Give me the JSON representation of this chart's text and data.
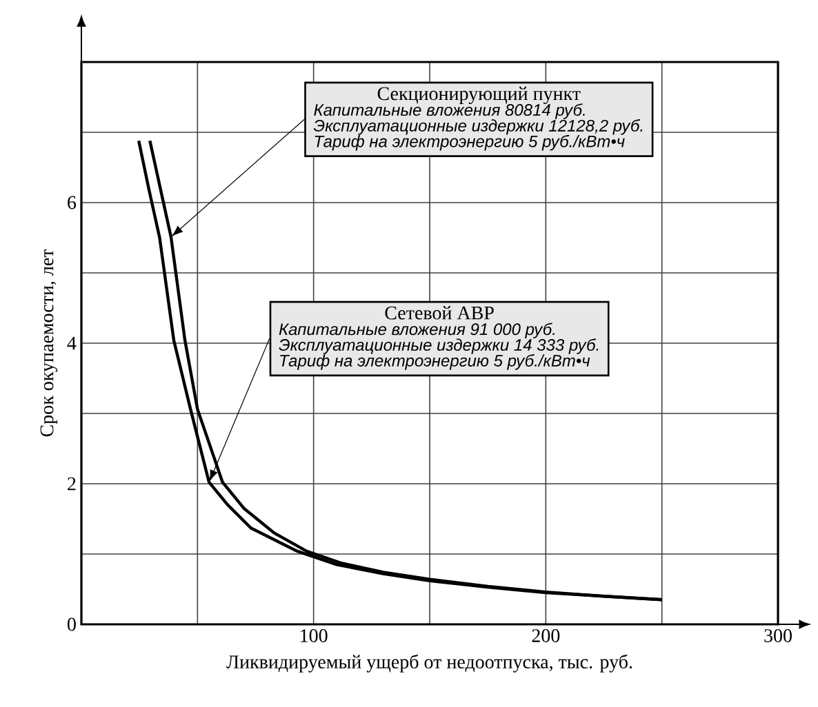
{
  "chart_data": {
    "type": "line",
    "xlabel": "Ликвидируемый ущерб от недоотпуска, тыс. руб.",
    "ylabel": "Срок окупаемости, лет",
    "xlim": [
      0,
      300
    ],
    "ylim": [
      0,
      8
    ],
    "xticks": [
      {
        "value": 0,
        "label": null
      },
      {
        "value": 50,
        "label": null
      },
      100,
      {
        "value": 150,
        "label": null
      },
      200,
      {
        "value": 250,
        "label": null
      },
      300
    ],
    "yticks": [
      0,
      {
        "value": 1,
        "label": null
      },
      2,
      {
        "value": 3,
        "label": null
      },
      4,
      {
        "value": 5,
        "label": null
      },
      6,
      {
        "value": 7,
        "label": null
      }
    ],
    "grid": true,
    "marker": "none",
    "line_style": "solid",
    "series": [
      {
        "color": "#000000",
        "x": [
          29.5,
          34,
          38.6,
          44.6,
          50,
          60.8,
          70,
          83,
          97,
          112,
          130,
          150,
          175,
          200,
          225,
          250
        ],
        "values": [
          6.88,
          6.2,
          5.51,
          4.04,
          3.06,
          2.02,
          1.65,
          1.3,
          1.04,
          0.87,
          0.74,
          0.64,
          0.54,
          0.46,
          0.4,
          0.35
        ]
      },
      {
        "color": "#000000",
        "x": [
          24.7,
          29,
          33.7,
          39.8,
          47,
          55,
          63,
          73,
          93,
          110,
          130,
          150,
          175,
          200,
          225,
          250
        ],
        "values": [
          6.88,
          6.2,
          5.5,
          4.04,
          3.06,
          2.02,
          1.7,
          1.37,
          1.04,
          0.85,
          0.72,
          0.62,
          0.53,
          0.45,
          0.4,
          0.35
        ]
      }
    ],
    "annotations": [
      "Секционирующий пункт",
      {
        "text": "Капитальные вложения 80814 руб.",
        "x": 38.6,
        "y": 5.51
      },
      "Эксплуатационные издержки 12128,2 руб.",
      "Тариф на электроэнергию 5 руб./кВт•ч",
      "Сетевой АВР",
      {
        "text": "Капитальные вложения  91 000 руб.",
        "x": 55,
        "y": 2.02
      },
      "Эксплуатационные издержки 14 333 руб.",
      "Тариф на электроэнергию 5 руб./кВт•ч"
    ]
  }
}
